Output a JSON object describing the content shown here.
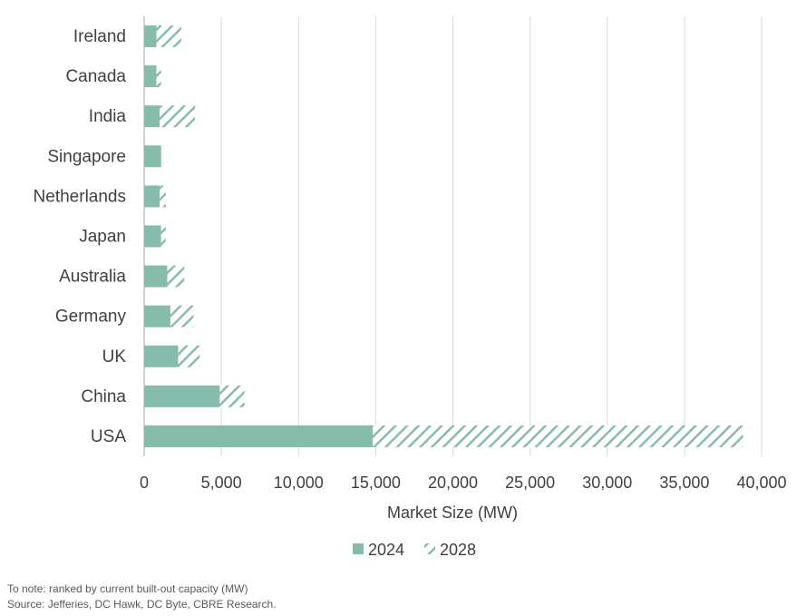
{
  "colors": {
    "bar_2024": "#86bcab",
    "hatch_2028": "#86bcab",
    "grid": "#d9d9d9",
    "axis": "#a6a6a6",
    "text": "#404040"
  },
  "chart_data": {
    "type": "bar",
    "orientation": "horizontal",
    "stacked": true,
    "categories": [
      "Ireland",
      "Canada",
      "India",
      "Singapore",
      "Netherlands",
      "Japan",
      "Australia",
      "Germany",
      "UK",
      "China",
      "USA"
    ],
    "series": [
      {
        "name": "2024",
        "style": "solid",
        "values": [
          800,
          800,
          1000,
          1100,
          1000,
          1100,
          1500,
          1700,
          2200,
          4900,
          14800
        ]
      },
      {
        "name": "2028",
        "style": "hatched",
        "values": [
          1600,
          300,
          2300,
          0,
          400,
          300,
          1100,
          1500,
          1400,
          1600,
          24000
        ]
      }
    ],
    "xlabel": "Market Size (MW)",
    "ylabel": "",
    "xlim": [
      0,
      40000
    ],
    "xticks": [
      0,
      5000,
      10000,
      15000,
      20000,
      25000,
      30000,
      35000,
      40000
    ],
    "xtick_labels": [
      "0",
      "5,000",
      "10,000",
      "15,000",
      "20,000",
      "25,000",
      "30,000",
      "35,000",
      "40,000"
    ],
    "grid": "vertical",
    "legend_position": "bottom-center"
  },
  "footnotes": {
    "note": "To note: ranked by current built-out capacity (MW)",
    "source": "Source: Jefferies, DC Hawk, DC Byte, CBRE Research."
  }
}
